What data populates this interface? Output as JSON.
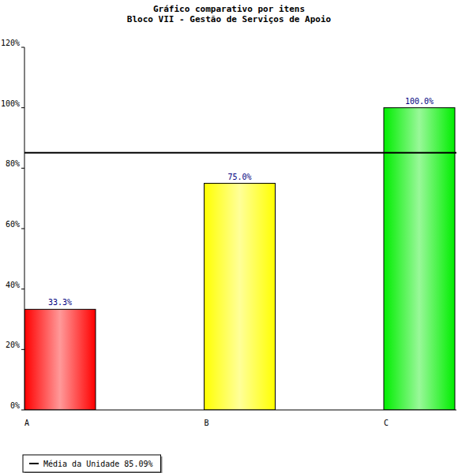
{
  "chart_data": {
    "type": "bar",
    "title": "Gráfico comparativo por itens",
    "subtitle": "Bloco VII - Gestão de Serviços de Apoio",
    "categories": [
      "A",
      "B",
      "C"
    ],
    "values": [
      33.3,
      75.0,
      100.0
    ],
    "value_labels": [
      "33.3%",
      "75.0%",
      "100.0%"
    ],
    "colors": [
      "#ff0000",
      "#ffff00",
      "#00ee00"
    ],
    "ylim": [
      0,
      120
    ],
    "yticks": [
      {
        "value": 0,
        "label": "0%"
      },
      {
        "value": 20,
        "label": "20%"
      },
      {
        "value": 40,
        "label": "40%"
      },
      {
        "value": 60,
        "label": "60%"
      },
      {
        "value": 80,
        "label": "80%"
      },
      {
        "value": 100,
        "label": "100%"
      },
      {
        "value": 120,
        "label": "120%"
      }
    ],
    "grid": false,
    "data_labels": true,
    "legend": "bottom-left",
    "reference_lines": [
      {
        "name": "Média da Unidade 85.09%",
        "value": 85.09,
        "color": "#000000"
      }
    ]
  }
}
